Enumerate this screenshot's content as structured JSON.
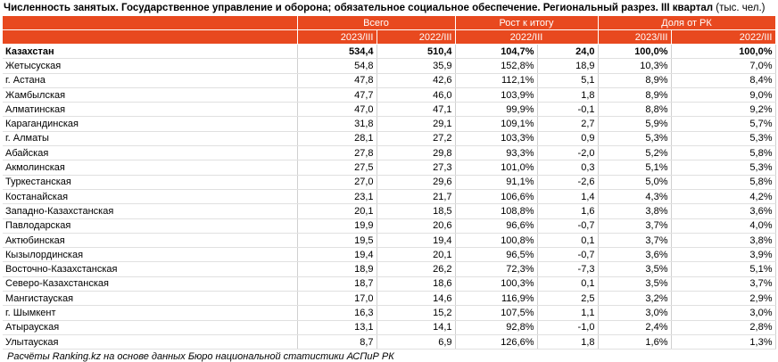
{
  "title_bold": "Численность занятых. Государственное управление и оборона; обязательное социальное обеспечение. Региональный разрез. III квартал",
  "title_unit": " (тыс. чел.)",
  "header": {
    "group_total": "Всего",
    "group_growth": "Рост к итогу",
    "group_share": "Доля от РК",
    "sub_total_a": "2023/III",
    "sub_total_b": "2022/III",
    "sub_growth": "2022/III",
    "sub_share_a": "2023/III",
    "sub_share_b": "2022/III"
  },
  "rows": [
    {
      "region": "Казахстан",
      "v2023": "534,4",
      "v2022": "510,4",
      "growth_pct": "104,7%",
      "growth_abs": "24,0",
      "share2023": "100,0%",
      "share2022": "100,0%",
      "total": true
    },
    {
      "region": "Жетысуская",
      "v2023": "54,8",
      "v2022": "35,9",
      "growth_pct": "152,8%",
      "growth_abs": "18,9",
      "share2023": "10,3%",
      "share2022": "7,0%"
    },
    {
      "region": "г. Астана",
      "v2023": "47,8",
      "v2022": "42,6",
      "growth_pct": "112,1%",
      "growth_abs": "5,1",
      "share2023": "8,9%",
      "share2022": "8,4%"
    },
    {
      "region": "Жамбылская",
      "v2023": "47,7",
      "v2022": "46,0",
      "growth_pct": "103,9%",
      "growth_abs": "1,8",
      "share2023": "8,9%",
      "share2022": "9,0%"
    },
    {
      "region": "Алматинская",
      "v2023": "47,0",
      "v2022": "47,1",
      "growth_pct": "99,9%",
      "growth_abs": "-0,1",
      "share2023": "8,8%",
      "share2022": "9,2%"
    },
    {
      "region": "Карагандинская",
      "v2023": "31,8",
      "v2022": "29,1",
      "growth_pct": "109,1%",
      "growth_abs": "2,7",
      "share2023": "5,9%",
      "share2022": "5,7%"
    },
    {
      "region": "г. Алматы",
      "v2023": "28,1",
      "v2022": "27,2",
      "growth_pct": "103,3%",
      "growth_abs": "0,9",
      "share2023": "5,3%",
      "share2022": "5,3%"
    },
    {
      "region": "Абайская",
      "v2023": "27,8",
      "v2022": "29,8",
      "growth_pct": "93,3%",
      "growth_abs": "-2,0",
      "share2023": "5,2%",
      "share2022": "5,8%"
    },
    {
      "region": "Акмолинская",
      "v2023": "27,5",
      "v2022": "27,3",
      "growth_pct": "101,0%",
      "growth_abs": "0,3",
      "share2023": "5,1%",
      "share2022": "5,3%"
    },
    {
      "region": "Туркестанская",
      "v2023": "27,0",
      "v2022": "29,6",
      "growth_pct": "91,1%",
      "growth_abs": "-2,6",
      "share2023": "5,0%",
      "share2022": "5,8%"
    },
    {
      "region": "Костанайская",
      "v2023": "23,1",
      "v2022": "21,7",
      "growth_pct": "106,6%",
      "growth_abs": "1,4",
      "share2023": "4,3%",
      "share2022": "4,2%"
    },
    {
      "region": "Западно-Казахстанская",
      "v2023": "20,1",
      "v2022": "18,5",
      "growth_pct": "108,8%",
      "growth_abs": "1,6",
      "share2023": "3,8%",
      "share2022": "3,6%"
    },
    {
      "region": "Павлодарская",
      "v2023": "19,9",
      "v2022": "20,6",
      "growth_pct": "96,6%",
      "growth_abs": "-0,7",
      "share2023": "3,7%",
      "share2022": "4,0%"
    },
    {
      "region": "Актюбинская",
      "v2023": "19,5",
      "v2022": "19,4",
      "growth_pct": "100,8%",
      "growth_abs": "0,1",
      "share2023": "3,7%",
      "share2022": "3,8%"
    },
    {
      "region": "Кызылординская",
      "v2023": "19,4",
      "v2022": "20,1",
      "growth_pct": "96,5%",
      "growth_abs": "-0,7",
      "share2023": "3,6%",
      "share2022": "3,9%"
    },
    {
      "region": "Восточно-Казахстанская",
      "v2023": "18,9",
      "v2022": "26,2",
      "growth_pct": "72,3%",
      "growth_abs": "-7,3",
      "share2023": "3,5%",
      "share2022": "5,1%"
    },
    {
      "region": "Северо-Казахстанская",
      "v2023": "18,7",
      "v2022": "18,6",
      "growth_pct": "100,3%",
      "growth_abs": "0,1",
      "share2023": "3,5%",
      "share2022": "3,7%"
    },
    {
      "region": "Мангистауская",
      "v2023": "17,0",
      "v2022": "14,6",
      "growth_pct": "116,9%",
      "growth_abs": "2,5",
      "share2023": "3,2%",
      "share2022": "2,9%"
    },
    {
      "region": "г. Шымкент",
      "v2023": "16,3",
      "v2022": "15,2",
      "growth_pct": "107,5%",
      "growth_abs": "1,1",
      "share2023": "3,0%",
      "share2022": "3,0%"
    },
    {
      "region": "Атырауская",
      "v2023": "13,1",
      "v2022": "14,1",
      "growth_pct": "92,8%",
      "growth_abs": "-1,0",
      "share2023": "2,4%",
      "share2022": "2,8%"
    },
    {
      "region": "Улытауская",
      "v2023": "8,7",
      "v2022": "6,9",
      "growth_pct": "126,6%",
      "growth_abs": "1,8",
      "share2023": "1,6%",
      "share2022": "1,3%"
    }
  ],
  "footer": "Расчёты Ranking.kz на основе данных Бюро национальной статистики АСПиР РК",
  "colors": {
    "header_bg": "#e8491f",
    "header_text": "#ffffff"
  }
}
